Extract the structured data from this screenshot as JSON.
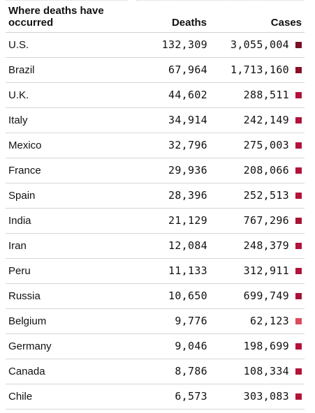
{
  "table": {
    "headers": {
      "country": "Where deaths have occurred",
      "deaths": "Deaths",
      "cases": "Cases"
    },
    "rows": [
      {
        "country": "U.S.",
        "deaths": "132,309",
        "cases": "3,055,004",
        "color": "#7a0f25"
      },
      {
        "country": "Brazil",
        "deaths": "67,964",
        "cases": "1,713,160",
        "color": "#8a0f27"
      },
      {
        "country": "U.K.",
        "deaths": "44,602",
        "cases": "288,511",
        "color": "#b3123a"
      },
      {
        "country": "Italy",
        "deaths": "34,914",
        "cases": "242,149",
        "color": "#b3123a"
      },
      {
        "country": "Mexico",
        "deaths": "32,796",
        "cases": "275,003",
        "color": "#b3123a"
      },
      {
        "country": "France",
        "deaths": "29,936",
        "cases": "208,066",
        "color": "#b3123a"
      },
      {
        "country": "Spain",
        "deaths": "28,396",
        "cases": "252,513",
        "color": "#b3123a"
      },
      {
        "country": "India",
        "deaths": "21,129",
        "cases": "767,296",
        "color": "#a81236"
      },
      {
        "country": "Iran",
        "deaths": "12,084",
        "cases": "248,379",
        "color": "#b3123a"
      },
      {
        "country": "Peru",
        "deaths": "11,133",
        "cases": "312,911",
        "color": "#b3123a"
      },
      {
        "country": "Russia",
        "deaths": "10,650",
        "cases": "699,749",
        "color": "#a81236"
      },
      {
        "country": "Belgium",
        "deaths": "9,776",
        "cases": "62,123",
        "color": "#dc4a5e"
      },
      {
        "country": "Germany",
        "deaths": "9,046",
        "cases": "198,699",
        "color": "#b3123a"
      },
      {
        "country": "Canada",
        "deaths": "8,786",
        "cases": "108,334",
        "color": "#b3123a"
      },
      {
        "country": "Chile",
        "deaths": "6,573",
        "cases": "303,083",
        "color": "#b3123a"
      }
    ]
  }
}
